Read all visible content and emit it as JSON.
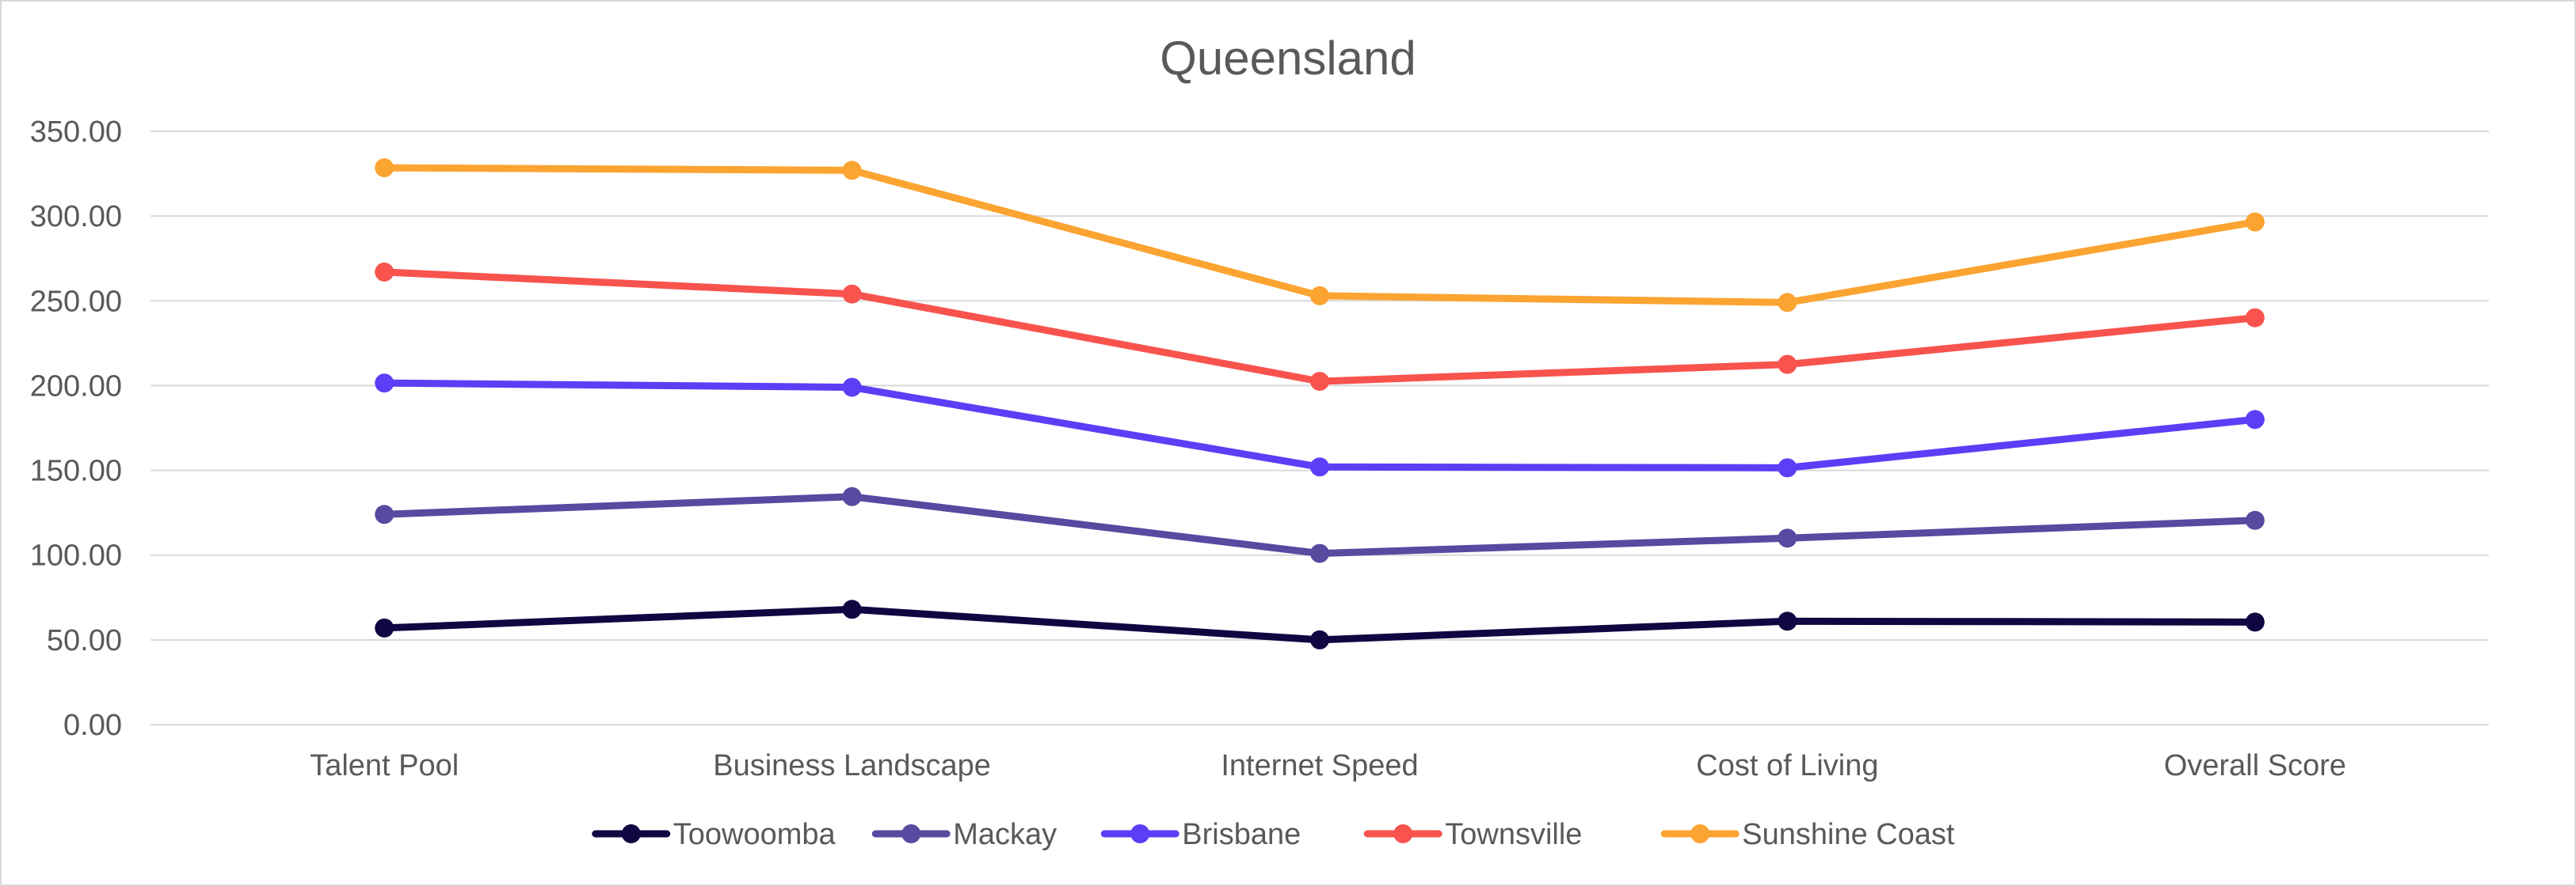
{
  "chart_data": {
    "type": "line",
    "title": "Queensland",
    "xlabel": "",
    "ylabel": "",
    "categories": [
      "Talent Pool",
      "Business Landscape",
      "Internet Speed",
      "Cost of Living",
      "Overall Score"
    ],
    "ylim": [
      0,
      350
    ],
    "yticks": [
      "0.00",
      "50.00",
      "100.00",
      "150.00",
      "200.00",
      "250.00",
      "300.00",
      "350.00"
    ],
    "grid": true,
    "legend": "bottom",
    "series": [
      {
        "name": "Toowoomba",
        "color": "#0f0742",
        "values": [
          57,
          68,
          50,
          61,
          60.5
        ]
      },
      {
        "name": "Mackay",
        "color": "#574aa0",
        "values": [
          124,
          134.5,
          101,
          110,
          120.5
        ]
      },
      {
        "name": "Brisbane",
        "color": "#5b3ff6",
        "values": [
          201.5,
          199,
          152,
          151.5,
          180
        ]
      },
      {
        "name": "Townsville",
        "color": "#f9534e",
        "values": [
          267,
          254,
          202.5,
          212.5,
          240
        ]
      },
      {
        "name": "Sunshine Coast",
        "color": "#fba431",
        "values": [
          328.5,
          327,
          253,
          249,
          296.5
        ]
      }
    ]
  }
}
